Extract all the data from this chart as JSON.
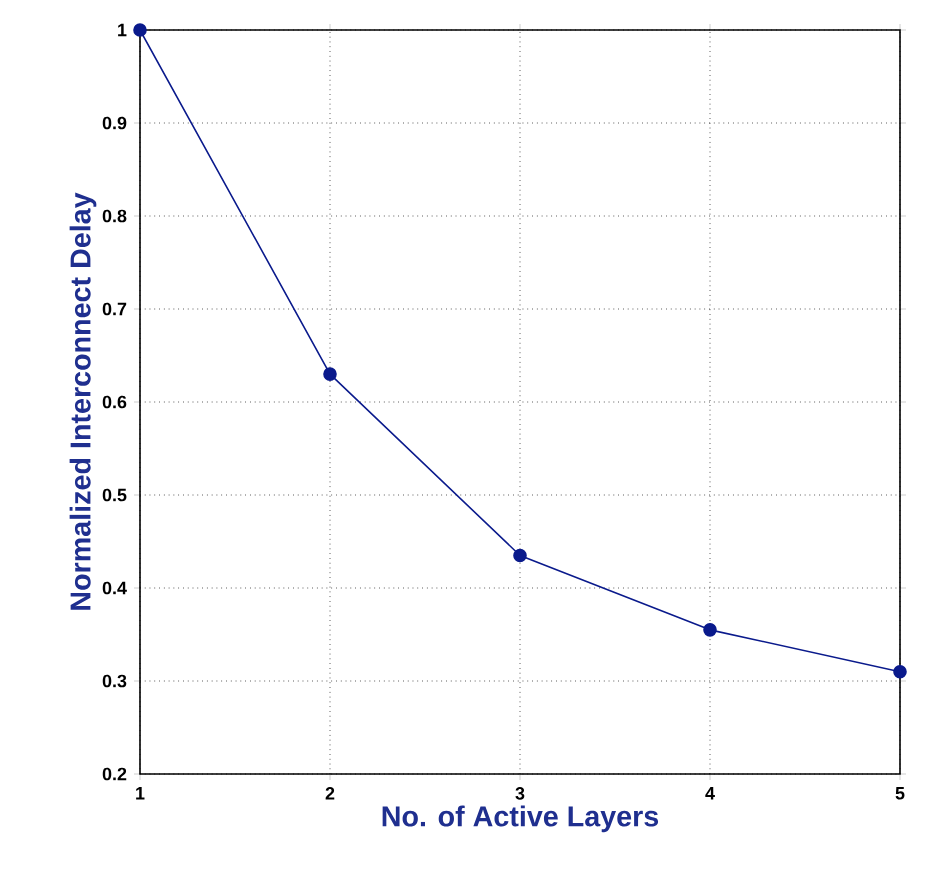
{
  "chart_data": {
    "type": "line",
    "xlabel": "No. of Active Layers",
    "ylabel": "Normalized Interconnect Delay",
    "x": [
      1,
      2,
      3,
      4,
      5
    ],
    "series": [
      {
        "color": "#0a1a8c",
        "values": [
          1,
          0.63,
          0.435,
          0.355,
          0.31
        ]
      }
    ],
    "xlim": [
      1,
      5
    ],
    "xticks": [
      1,
      2,
      3,
      4,
      5
    ],
    "ylim": [
      0.2,
      1
    ],
    "yticks": [
      0.2,
      0.3,
      0.4,
      0.5,
      0.6,
      0.7,
      0.8,
      0.9,
      1
    ],
    "grid": true,
    "marker": "circle",
    "line_style": "solid"
  }
}
